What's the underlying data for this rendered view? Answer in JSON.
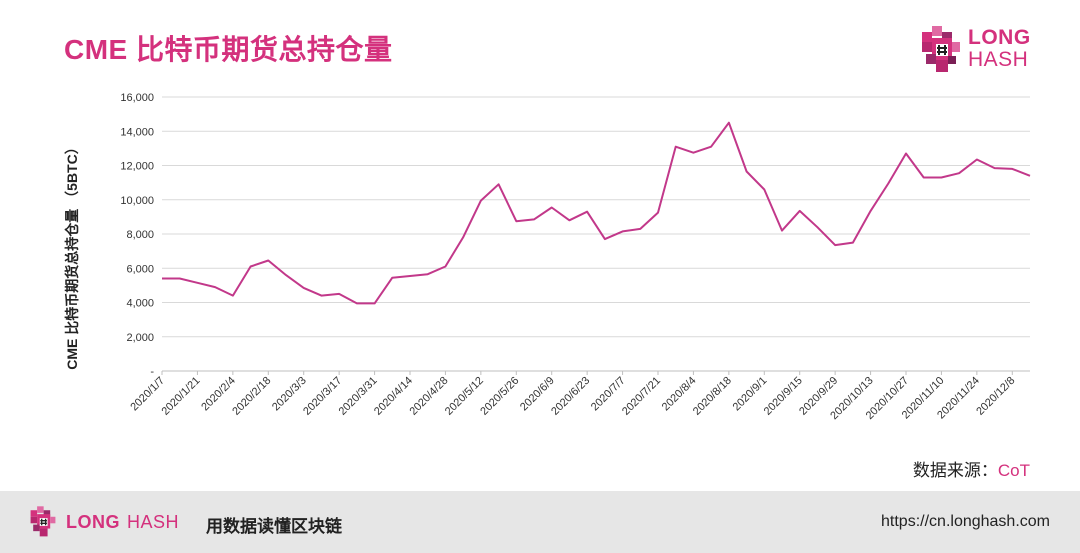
{
  "colors": {
    "accent": "#d4317d",
    "text": "#222222",
    "grid": "#d9d9d9",
    "footer_bg": "#e6e6e6"
  },
  "header": {
    "title": "CME 比特币期货总持仓量"
  },
  "brand": {
    "word1": "LONG",
    "word2": "HASH",
    "logo_icon": "longhash-cube-logo-icon"
  },
  "source": {
    "label": "数据来源：",
    "value": "CoT"
  },
  "footer": {
    "brand_long": "LONG",
    "brand_hash": "HASH",
    "slogan": "用数据读懂区块链",
    "url": "https://cn.longhash.com"
  },
  "chart_data": {
    "type": "line",
    "title": "CME 比特币期货总持仓量",
    "ylabel": "CME 比特币期货总持仓量 （5BTC）",
    "xlabel": "",
    "ylim": [
      0,
      16000
    ],
    "y_ticks": [
      0,
      2000,
      4000,
      6000,
      8000,
      10000,
      12000,
      14000,
      16000
    ],
    "y_tick_labels": [
      "-",
      "2,000",
      "4,000",
      "6,000",
      "8,000",
      "10,000",
      "12,000",
      "14,000",
      "16,000"
    ],
    "x_tick_labels": [
      "2020/1/7",
      "2020/1/21",
      "2020/2/4",
      "2020/2/18",
      "2020/3/3",
      "2020/3/17",
      "2020/3/31",
      "2020/4/14",
      "2020/4/28",
      "2020/5/12",
      "2020/5/26",
      "2020/6/9",
      "2020/6/23",
      "2020/7/7",
      "2020/7/21",
      "2020/8/4",
      "2020/8/18",
      "2020/9/1",
      "2020/9/15",
      "2020/9/29",
      "2020/10/13",
      "2020/10/27",
      "2020/11/10",
      "2020/11/24",
      "2020/12/8"
    ],
    "grid": true,
    "legend": "none",
    "series": [
      {
        "color": "#c2388a",
        "x": [
          "2020/1/7",
          "2020/1/14",
          "2020/1/21",
          "2020/1/28",
          "2020/2/4",
          "2020/2/11",
          "2020/2/18",
          "2020/2/25",
          "2020/3/3",
          "2020/3/10",
          "2020/3/17",
          "2020/3/24",
          "2020/3/31",
          "2020/4/7",
          "2020/4/14",
          "2020/4/21",
          "2020/4/28",
          "2020/5/5",
          "2020/5/12",
          "2020/5/19",
          "2020/5/26",
          "2020/6/2",
          "2020/6/9",
          "2020/6/16",
          "2020/6/23",
          "2020/6/30",
          "2020/7/7",
          "2020/7/14",
          "2020/7/21",
          "2020/7/28",
          "2020/8/4",
          "2020/8/11",
          "2020/8/18",
          "2020/8/25",
          "2020/9/1",
          "2020/9/8",
          "2020/9/15",
          "2020/9/22",
          "2020/9/29",
          "2020/10/6",
          "2020/10/13",
          "2020/10/20",
          "2020/10/27",
          "2020/11/3",
          "2020/11/10",
          "2020/11/17",
          "2020/11/24",
          "2020/12/1",
          "2020/12/8",
          "2020/12/15"
        ],
        "values": [
          5400,
          5400,
          5150,
          4900,
          4400,
          6100,
          6450,
          5600,
          4850,
          4400,
          4500,
          3950,
          3950,
          5450,
          5550,
          5650,
          6100,
          7800,
          9950,
          10900,
          8750,
          8850,
          9550,
          8800,
          9300,
          7700,
          8150,
          8300,
          9250,
          13100,
          12750,
          13100,
          14500,
          11650,
          10600,
          8200,
          9350,
          8400,
          7350,
          7500,
          9350,
          10950,
          12700,
          11300,
          11300,
          11550,
          12350,
          11850,
          11800,
          11400
        ]
      }
    ]
  }
}
